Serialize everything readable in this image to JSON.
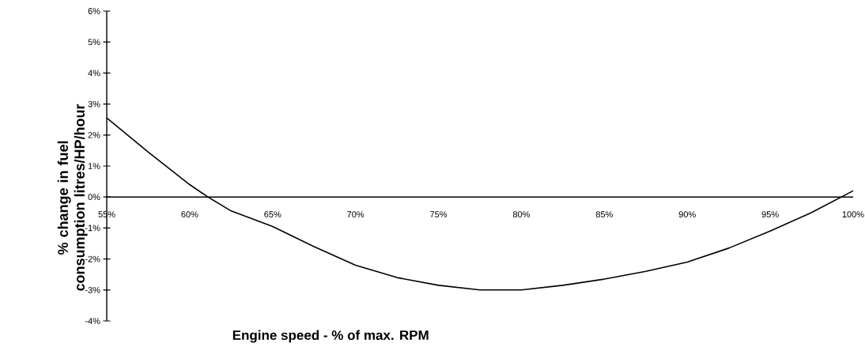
{
  "chart_data": {
    "type": "line",
    "xlabel": "Engine speed - % of max. RPM",
    "ylabel": "% change in fuel consumption litres/HP/hour",
    "x": [
      55,
      57.5,
      60,
      61.1,
      62.5,
      65,
      67.5,
      70,
      72.5,
      75,
      77.5,
      80,
      82.5,
      85,
      87.5,
      90,
      92.5,
      95,
      97.5,
      100
    ],
    "series": [
      {
        "color": "#000000",
        "values": [
          2.55,
          1.45,
          0.4,
          0,
          -0.45,
          -0.95,
          -1.6,
          -2.2,
          -2.6,
          -2.85,
          -3.0,
          -3.0,
          -2.85,
          -2.65,
          -2.4,
          -2.1,
          -1.65,
          -1.1,
          -0.5,
          0.2
        ]
      }
    ],
    "xlim": [
      55,
      100
    ],
    "ylim": [
      -4,
      6
    ],
    "xticks": [
      {
        "value": 55,
        "label": "55%"
      },
      {
        "value": 60,
        "label": "60%"
      },
      {
        "value": 65,
        "label": "65%"
      },
      {
        "value": 70,
        "label": "70%"
      },
      {
        "value": 75,
        "label": "75%"
      },
      {
        "value": 80,
        "label": "80%"
      },
      {
        "value": 85,
        "label": "85%"
      },
      {
        "value": 90,
        "label": "90%"
      },
      {
        "value": 95,
        "label": "95%"
      },
      {
        "value": 100,
        "label": "100%"
      }
    ],
    "yticks": [
      {
        "value": -4,
        "label": "-4%"
      },
      {
        "value": -3,
        "label": "-3%"
      },
      {
        "value": -2,
        "label": "-2%"
      },
      {
        "value": -1,
        "label": "-1%"
      },
      {
        "value": 0,
        "label": "0%"
      },
      {
        "value": 1,
        "label": "1%"
      },
      {
        "value": 2,
        "label": "2%"
      },
      {
        "value": 3,
        "label": "3%"
      },
      {
        "value": 4,
        "label": "4%"
      },
      {
        "value": 5,
        "label": "5%"
      },
      {
        "value": 6,
        "label": "6%"
      }
    ],
    "grid": false,
    "marker": "none",
    "line_style": "solid"
  }
}
